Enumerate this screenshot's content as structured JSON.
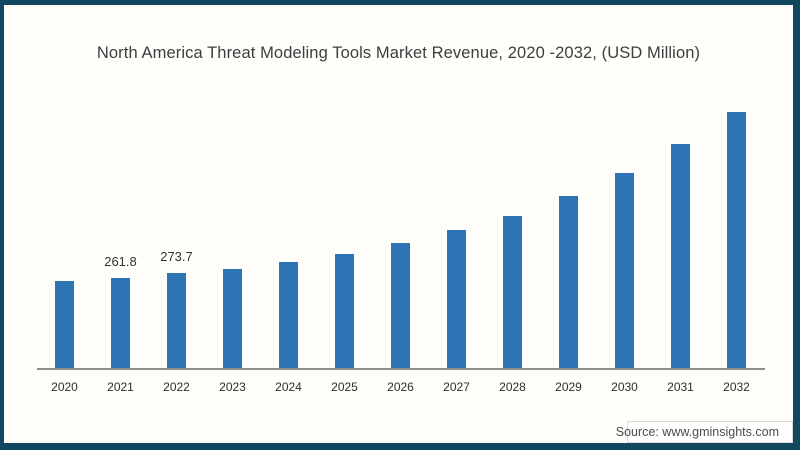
{
  "chart_data": {
    "type": "bar",
    "title": "North America Threat Modeling Tools Market Revenue, 2020 -2032, (USD Million)",
    "categories": [
      "2020",
      "2021",
      "2022",
      "2023",
      "2024",
      "2025",
      "2026",
      "2027",
      "2028",
      "2029",
      "2030",
      "2031",
      "2032"
    ],
    "values": [
      252,
      261.8,
      273.7,
      286,
      306,
      329,
      361,
      398,
      438,
      495,
      561,
      644,
      736
    ],
    "data_labels": [
      "",
      "261.8",
      "273.7",
      "",
      "",
      "",
      "",
      "",
      "",
      "",
      "",
      "",
      ""
    ],
    "xlabel": "",
    "ylabel": "",
    "ylim": [
      0,
      760
    ],
    "grid": false,
    "legend": false,
    "bar_color": "#2e74b5",
    "axis_line_color": "#8f8f8f",
    "title_color": "#3d3d3d"
  },
  "frame": {
    "border_color": "#12485f"
  },
  "source": {
    "label": "Source: www.gminsights.com"
  }
}
